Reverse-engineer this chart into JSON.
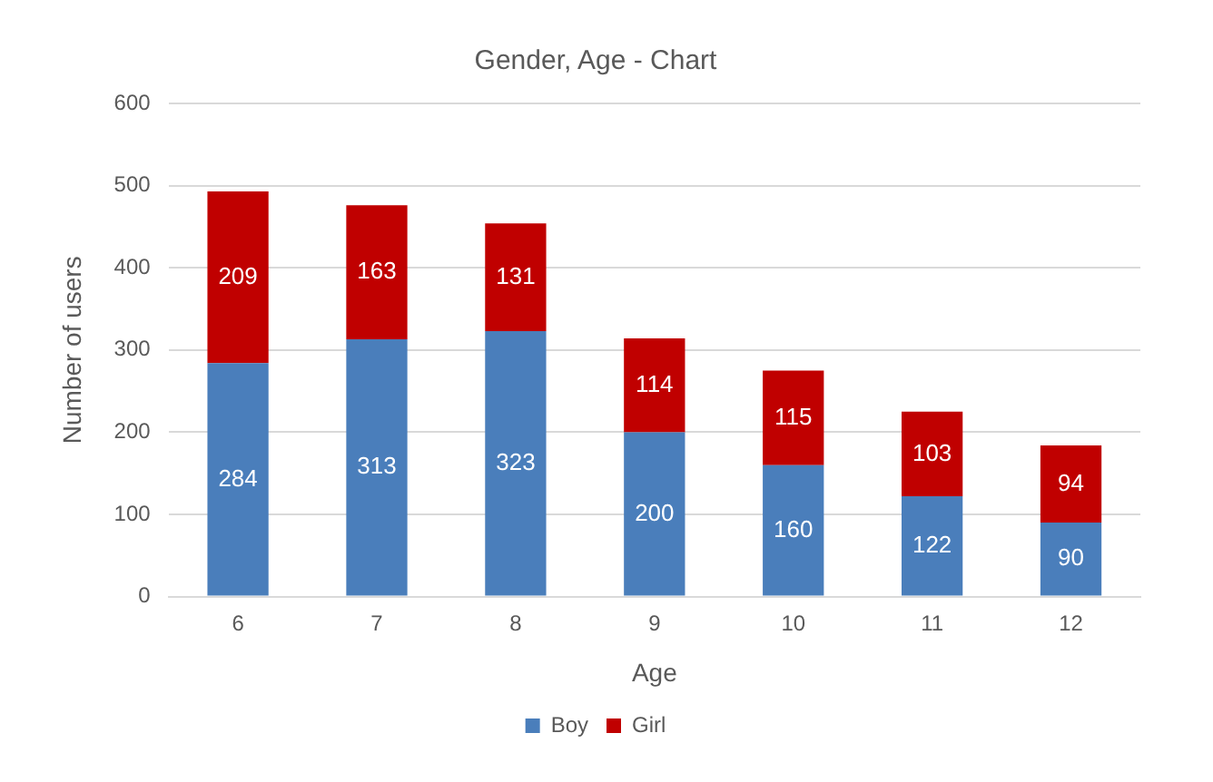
{
  "chart_data": {
    "type": "bar",
    "title": "Gender, Age - Chart",
    "xlabel": "Age",
    "ylabel": "Number of users",
    "categories": [
      "6",
      "7",
      "8",
      "9",
      "10",
      "11",
      "12"
    ],
    "stacked": true,
    "series": [
      {
        "name": "Boy",
        "color": "#4a7ebb",
        "values": [
          284,
          313,
          323,
          200,
          160,
          122,
          90
        ]
      },
      {
        "name": "Girl",
        "color": "#c00000",
        "values": [
          209,
          163,
          131,
          114,
          115,
          103,
          94
        ]
      }
    ],
    "ylim": [
      0,
      600
    ],
    "yticks": [
      0,
      100,
      200,
      300,
      400,
      500,
      600
    ],
    "grid": "y",
    "legend": "bottom",
    "data_labels": true
  }
}
